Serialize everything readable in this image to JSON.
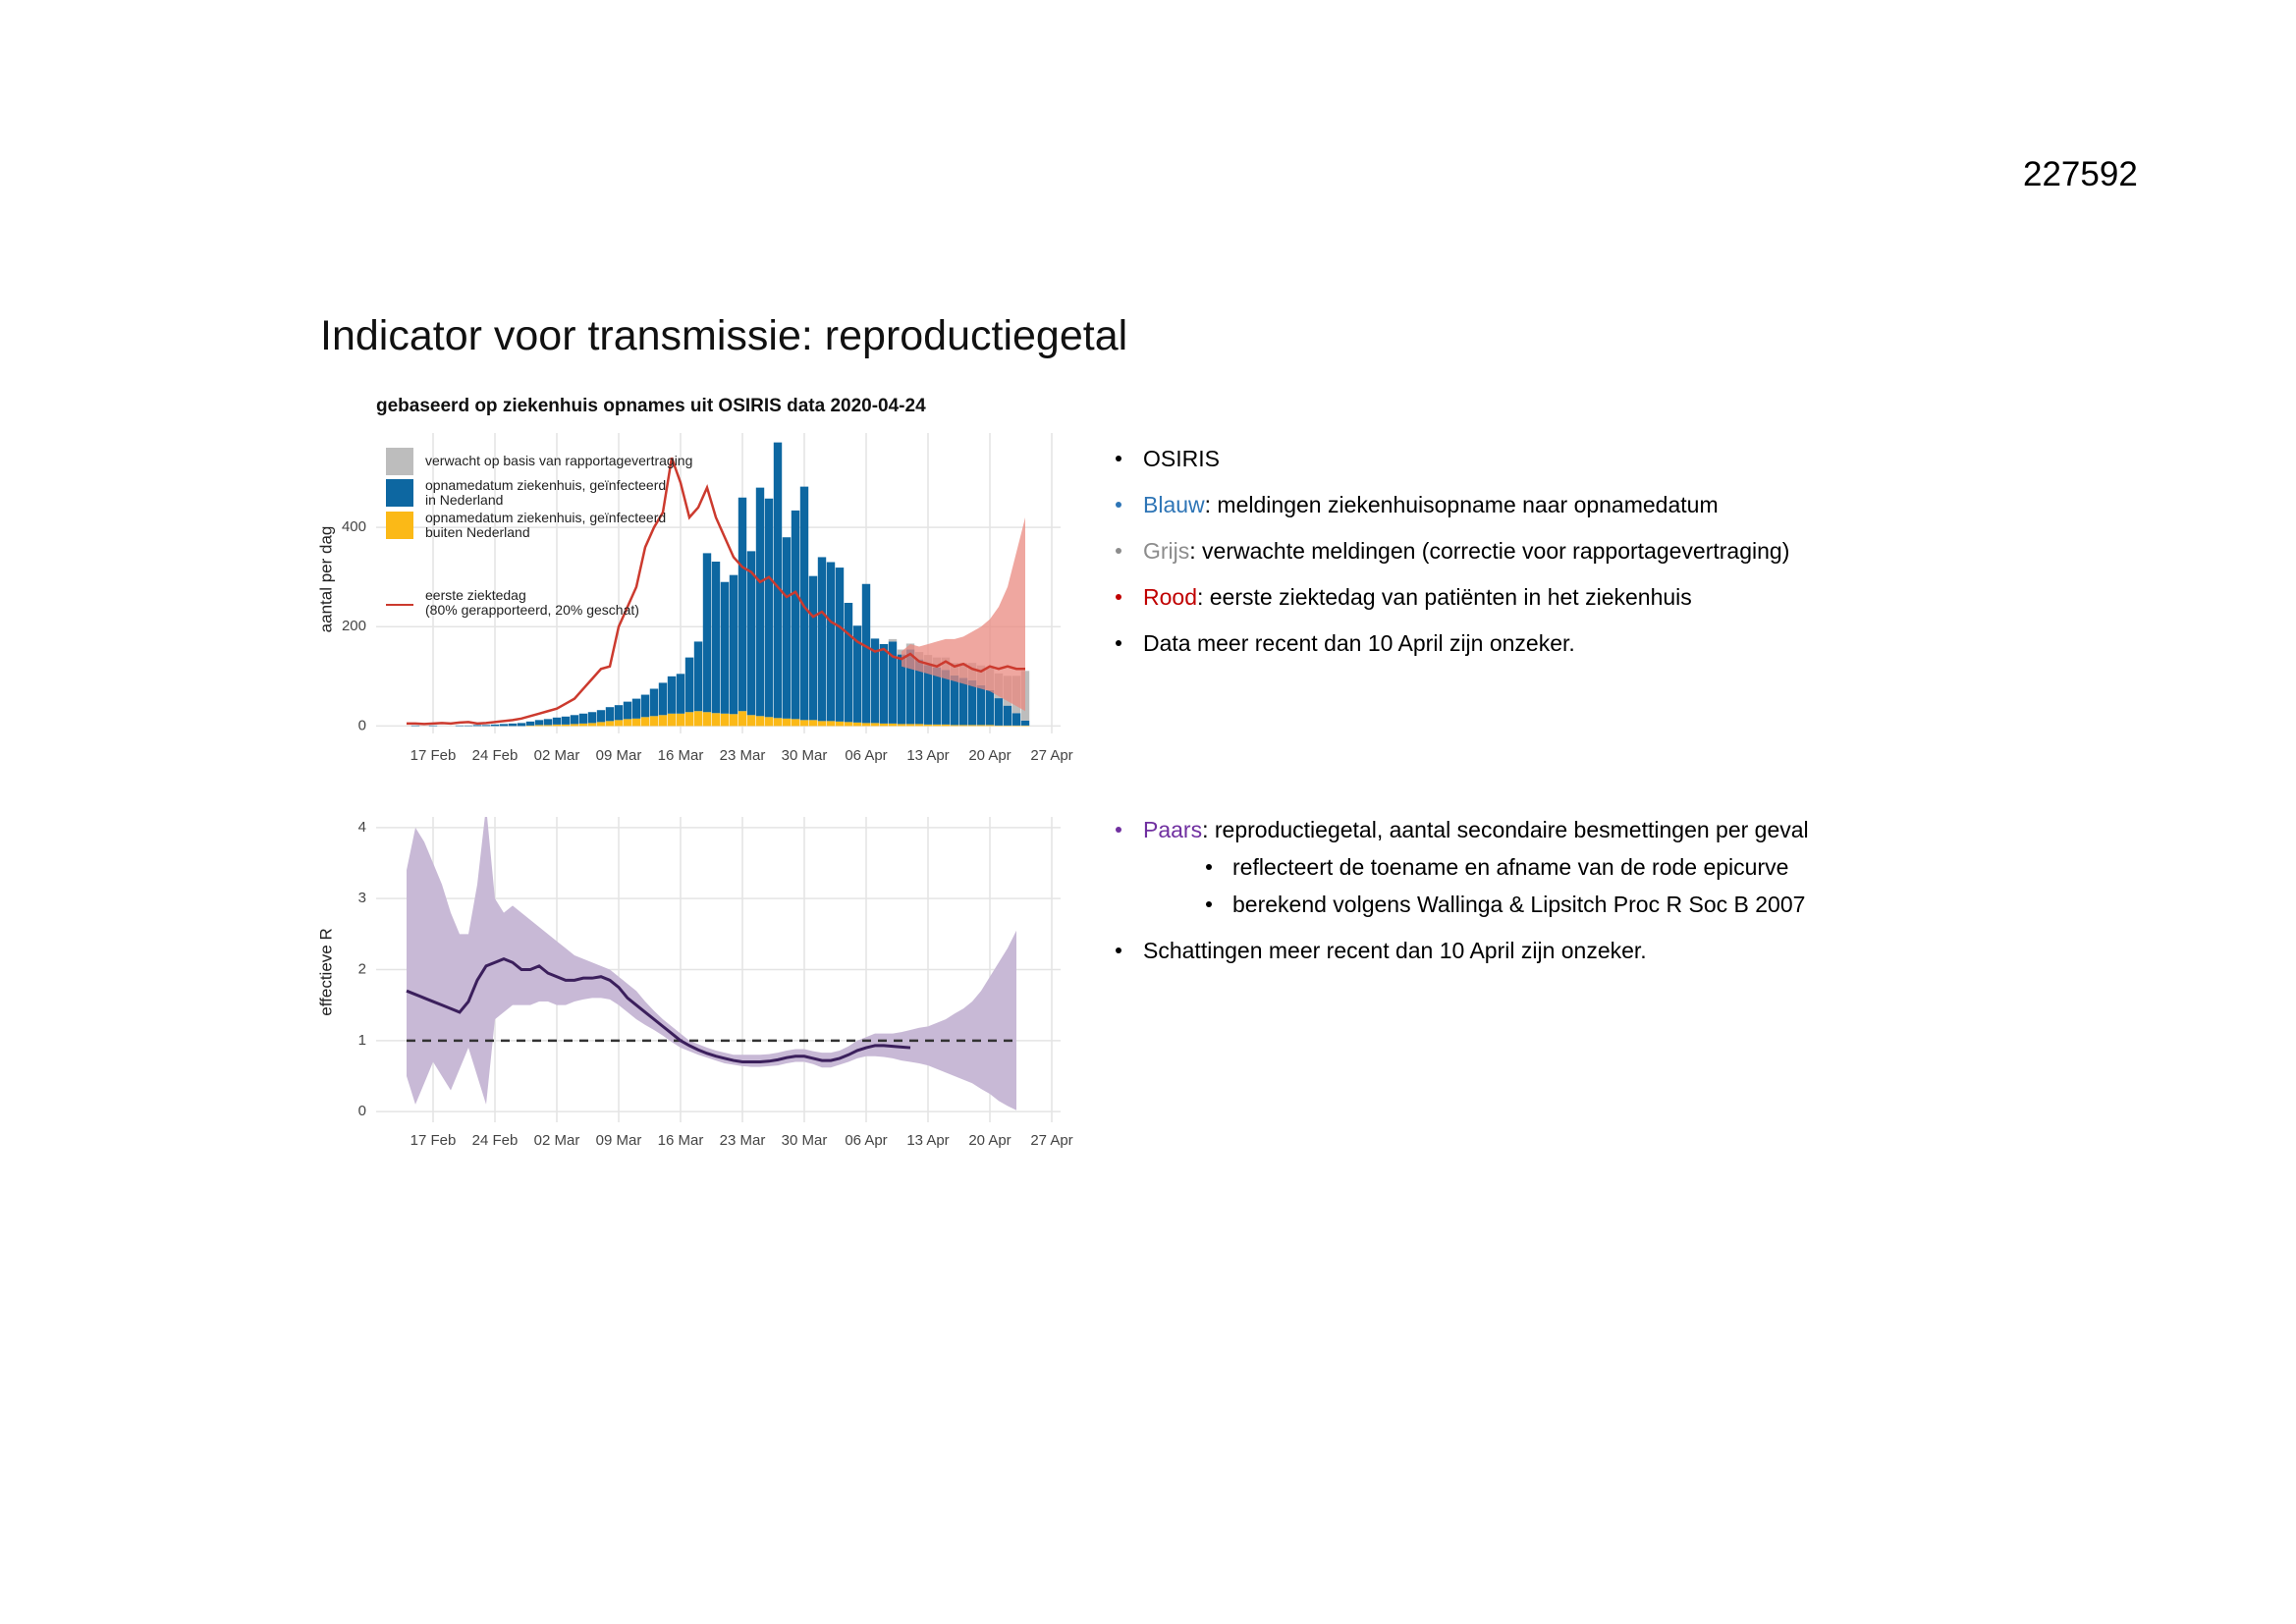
{
  "page_number": "227592",
  "title": "Indicator voor transmissie: reproductiegetal",
  "chart_data": [
    {
      "type": "bar",
      "title": "gebaseerd op ziekenhuis opnames uit OSIRIS data 2020-04-24",
      "ylabel": "aantal per dag",
      "categories": [
        null,
        null,
        null,
        "17 Feb",
        null,
        null,
        null,
        null,
        null,
        null,
        "24 Feb",
        null,
        null,
        null,
        null,
        null,
        null,
        "02 Mar",
        null,
        null,
        null,
        null,
        null,
        null,
        "09 Mar",
        null,
        null,
        null,
        null,
        null,
        null,
        "16 Mar",
        null,
        null,
        null,
        null,
        null,
        null,
        "23 Mar",
        null,
        null,
        null,
        null,
        null,
        null,
        "30 Mar",
        null,
        null,
        null,
        null,
        null,
        null,
        "06 Apr",
        null,
        null,
        null,
        null,
        null,
        null,
        "13 Apr",
        null,
        null,
        null,
        null,
        null,
        null,
        "20 Apr",
        null,
        null,
        null,
        null,
        null,
        null,
        "27 Apr"
      ],
      "series": [
        {
          "name": "verwacht op basis van rapportagevertraging",
          "type": "bar",
          "color": "#bdbdbd",
          "values": [
            null,
            null,
            null,
            null,
            null,
            null,
            null,
            null,
            null,
            null,
            null,
            null,
            null,
            null,
            null,
            null,
            null,
            null,
            null,
            null,
            null,
            null,
            null,
            null,
            null,
            null,
            null,
            null,
            null,
            null,
            null,
            null,
            null,
            null,
            null,
            null,
            null,
            null,
            null,
            null,
            null,
            null,
            null,
            null,
            null,
            null,
            null,
            null,
            null,
            null,
            null,
            null,
            null,
            null,
            null,
            5,
            10,
            12,
            15,
            20,
            20,
            25,
            25,
            30,
            35,
            40,
            45,
            50,
            60,
            75,
            100,
            null,
            null,
            null
          ]
        },
        {
          "name": "opnamedatum ziekenhuis, geïnfecteerd\nin Nederland",
          "type": "bar",
          "color": "#0d67a1",
          "values": [
            0,
            1,
            0,
            1,
            0,
            0,
            1,
            1,
            2,
            2,
            3,
            4,
            5,
            6,
            8,
            10,
            12,
            14,
            16,
            18,
            20,
            22,
            24,
            28,
            30,
            35,
            40,
            45,
            55,
            65,
            75,
            80,
            110,
            140,
            320,
            305,
            265,
            280,
            430,
            330,
            460,
            440,
            555,
            365,
            420,
            470,
            290,
            330,
            320,
            310,
            240,
            195,
            280,
            170,
            160,
            165,
            140,
            150,
            130,
            120,
            115,
            110,
            100,
            95,
            90,
            80,
            70,
            55,
            40,
            25,
            10,
            null,
            null,
            null
          ]
        },
        {
          "name": "opnamedatum ziekenhuis, geïnfecteerd\nbuiten Nederland",
          "type": "bar",
          "color": "#fbb917",
          "values": [
            0,
            0,
            0,
            0,
            0,
            0,
            0,
            0,
            0,
            0,
            0,
            0,
            0,
            0,
            1,
            2,
            2,
            3,
            3,
            4,
            5,
            6,
            8,
            10,
            12,
            14,
            15,
            18,
            20,
            22,
            25,
            25,
            28,
            30,
            28,
            26,
            25,
            24,
            30,
            22,
            20,
            18,
            16,
            15,
            14,
            12,
            12,
            10,
            10,
            9,
            8,
            7,
            6,
            6,
            5,
            5,
            4,
            4,
            4,
            3,
            3,
            3,
            2,
            2,
            2,
            2,
            2,
            1,
            1,
            1,
            1,
            null,
            null,
            null
          ]
        },
        {
          "name": "eerste ziektedag\n (80% gerapporteerd, 20% geschat)",
          "type": "line",
          "color": "#cc3a2e",
          "band_color": "#e98a80",
          "values": [
            5,
            5,
            4,
            5,
            6,
            5,
            7,
            8,
            5,
            6,
            8,
            10,
            12,
            15,
            20,
            25,
            30,
            35,
            45,
            55,
            75,
            95,
            115,
            120,
            200,
            240,
            280,
            360,
            400,
            430,
            540,
            490,
            420,
            440,
            480,
            420,
            380,
            340,
            320,
            310,
            290,
            300,
            280,
            260,
            270,
            240,
            220,
            230,
            210,
            200,
            185,
            170,
            160,
            150,
            155,
            140,
            135,
            145,
            130,
            125,
            120,
            130,
            120,
            125,
            115,
            110,
            120,
            115,
            120,
            115,
            115,
            null,
            null,
            null
          ],
          "band_upper": [
            null,
            null,
            null,
            null,
            null,
            null,
            null,
            null,
            null,
            null,
            null,
            null,
            null,
            null,
            null,
            null,
            null,
            null,
            null,
            null,
            null,
            null,
            null,
            null,
            null,
            null,
            null,
            null,
            null,
            null,
            null,
            null,
            null,
            null,
            null,
            null,
            null,
            null,
            null,
            null,
            null,
            null,
            null,
            null,
            null,
            null,
            null,
            null,
            null,
            null,
            null,
            null,
            null,
            null,
            null,
            null,
            150,
            165,
            160,
            165,
            170,
            175,
            175,
            180,
            190,
            200,
            215,
            240,
            280,
            350,
            420,
            null,
            null,
            null
          ],
          "band_lower": [
            null,
            null,
            null,
            null,
            null,
            null,
            null,
            null,
            null,
            null,
            null,
            null,
            null,
            null,
            null,
            null,
            null,
            null,
            null,
            null,
            null,
            null,
            null,
            null,
            null,
            null,
            null,
            null,
            null,
            null,
            null,
            null,
            null,
            null,
            null,
            null,
            null,
            null,
            null,
            null,
            null,
            null,
            null,
            null,
            null,
            null,
            null,
            null,
            null,
            null,
            null,
            null,
            null,
            null,
            null,
            null,
            120,
            115,
            110,
            105,
            100,
            95,
            90,
            85,
            80,
            75,
            70,
            60,
            50,
            40,
            30,
            null,
            null,
            null
          ]
        }
      ],
      "ylim": [
        -15,
        590
      ],
      "yticks": [
        0,
        200,
        400
      ],
      "grid": true,
      "legend": "top-left"
    },
    {
      "type": "line",
      "ylabel": "effectieve R",
      "categories": [
        null,
        null,
        null,
        "17 Feb",
        null,
        null,
        null,
        null,
        null,
        null,
        "24 Feb",
        null,
        null,
        null,
        null,
        null,
        null,
        "02 Mar",
        null,
        null,
        null,
        null,
        null,
        null,
        "09 Mar",
        null,
        null,
        null,
        null,
        null,
        null,
        "16 Mar",
        null,
        null,
        null,
        null,
        null,
        null,
        "23 Mar",
        null,
        null,
        null,
        null,
        null,
        null,
        "30 Mar",
        null,
        null,
        null,
        null,
        null,
        null,
        "06 Apr",
        null,
        null,
        null,
        null,
        null,
        null,
        "13 Apr",
        null,
        null,
        null,
        null,
        null,
        null,
        "20 Apr",
        null,
        null,
        null,
        null,
        null,
        null,
        "27 Apr"
      ],
      "series": [
        {
          "color": "#3b1f5c",
          "band_color": "#c8b9d6",
          "values": [
            1.7,
            1.65,
            1.6,
            1.55,
            1.5,
            1.45,
            1.4,
            1.55,
            1.85,
            2.05,
            2.1,
            2.15,
            2.1,
            2.0,
            2.0,
            2.05,
            1.95,
            1.9,
            1.85,
            1.85,
            1.88,
            1.88,
            1.9,
            1.85,
            1.75,
            1.6,
            1.5,
            1.4,
            1.3,
            1.2,
            1.1,
            1.0,
            0.93,
            0.87,
            0.82,
            0.78,
            0.75,
            0.72,
            0.7,
            0.7,
            0.7,
            0.71,
            0.73,
            0.76,
            0.78,
            0.78,
            0.75,
            0.72,
            0.72,
            0.75,
            0.8,
            0.86,
            0.9,
            0.93,
            0.93,
            0.92,
            0.91,
            0.9,
            null,
            null,
            null,
            null,
            null,
            null,
            null,
            null,
            null,
            null,
            null,
            null,
            null,
            null,
            null,
            null
          ],
          "band_upper": [
            3.4,
            4.0,
            3.8,
            3.5,
            3.2,
            2.8,
            2.5,
            2.5,
            3.2,
            4.3,
            3.0,
            2.8,
            2.9,
            2.8,
            2.7,
            2.6,
            2.5,
            2.4,
            2.3,
            2.2,
            2.15,
            2.1,
            2.05,
            2.0,
            1.9,
            1.8,
            1.7,
            1.55,
            1.42,
            1.3,
            1.2,
            1.1,
            1.0,
            0.95,
            0.9,
            0.86,
            0.83,
            0.8,
            0.8,
            0.8,
            0.8,
            0.81,
            0.83,
            0.86,
            0.88,
            0.88,
            0.85,
            0.83,
            0.83,
            0.86,
            0.92,
            1.0,
            1.05,
            1.1,
            1.1,
            1.1,
            1.12,
            1.15,
            1.18,
            1.2,
            1.25,
            1.3,
            1.38,
            1.45,
            1.55,
            1.7,
            1.9,
            2.1,
            2.3,
            2.55,
            null,
            null,
            null,
            null
          ],
          "band_lower": [
            0.5,
            0.1,
            0.4,
            0.7,
            0.5,
            0.3,
            0.6,
            0.9,
            0.5,
            0.1,
            1.3,
            1.4,
            1.5,
            1.5,
            1.5,
            1.55,
            1.55,
            1.5,
            1.5,
            1.55,
            1.58,
            1.6,
            1.6,
            1.58,
            1.5,
            1.4,
            1.3,
            1.22,
            1.15,
            1.07,
            0.98,
            0.9,
            0.85,
            0.8,
            0.76,
            0.72,
            0.68,
            0.66,
            0.64,
            0.63,
            0.63,
            0.64,
            0.65,
            0.68,
            0.7,
            0.7,
            0.67,
            0.62,
            0.62,
            0.66,
            0.7,
            0.75,
            0.78,
            0.78,
            0.77,
            0.75,
            0.72,
            0.7,
            0.68,
            0.65,
            0.6,
            0.55,
            0.5,
            0.45,
            0.4,
            0.32,
            0.25,
            0.15,
            0.08,
            0.02,
            null,
            null,
            null,
            null
          ]
        }
      ],
      "reference_line": 1,
      "ylim": [
        -0.15,
        4.15
      ],
      "yticks": [
        0,
        1,
        2,
        3,
        4
      ],
      "grid": true
    }
  ],
  "notes_top": [
    {
      "text": "OSIRIS",
      "color": "#000000"
    },
    {
      "label": "Blauw",
      "text": ": meldingen ziekenhuisopname naar opnamedatum",
      "color": "#2e75b6"
    },
    {
      "label": "Grijs",
      "text": ": verwachte meldingen (correctie voor rapportagevertraging)",
      "color": "#8c8c8c"
    },
    {
      "label": "Rood",
      "text": ": eerste ziektedag van patiënten in het ziekenhuis",
      "color": "#c00000"
    },
    {
      "text": "Data meer recent dan 10 April zijn onzeker.",
      "color": "#000000"
    }
  ],
  "notes_bottom": [
    {
      "label": "Paars",
      "text": ": reproductiegetal, aantal secondaire  besmettingen per geval",
      "color": "#7030a0",
      "sub": [
        "reflecteert de toename en afname van de rode epicurve",
        "berekend volgens Wallinga & Lipsitch Proc R Soc B 2007"
      ]
    },
    {
      "text": "Schattingen meer recent dan 10 April zijn onzeker.",
      "color": "#000000"
    }
  ]
}
